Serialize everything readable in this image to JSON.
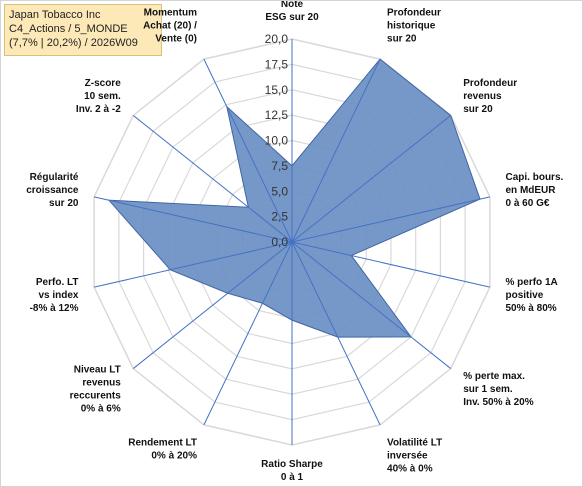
{
  "title_box": {
    "line1": "Japan Tobacco Inc",
    "line2": "C4_Actions / 5_MONDE",
    "line3": "(7,7% | 20,2%) / 2026W09"
  },
  "chart_data": {
    "type": "radar",
    "title": "Japan Tobacco Inc",
    "rlim": [
      0,
      20
    ],
    "ticks": [
      "0,0",
      "2,5",
      "5,0",
      "7,5",
      "10,0",
      "12,5",
      "15,0",
      "17,5",
      "20,0"
    ],
    "grid": true,
    "axes": [
      [
        "Note",
        "ESG sur 20"
      ],
      [
        "Profondeur",
        "historique",
        "sur 20"
      ],
      [
        "Profondeur",
        "revenus",
        "sur 20"
      ],
      [
        "Capi. bours.",
        "en MdEUR",
        "0 à 60 G€"
      ],
      [
        "% perfo 1A",
        "positive",
        "50% à 80%"
      ],
      [
        "% perte max.",
        "sur 1 sem.",
        "Inv. 50% à 20%"
      ],
      [
        "Volatilité LT",
        "inversée",
        "40% à 0%"
      ],
      [
        "Ratio Sharpe",
        "0 à 1"
      ],
      [
        "Rendement LT",
        "0% à 20%"
      ],
      [
        "Niveau LT",
        "revenus",
        "reccurents",
        "0% à 6%"
      ],
      [
        "Perfo. LT",
        "vs index",
        "-8% à 12%"
      ],
      [
        "Régularité",
        "croissance",
        "sur 20"
      ],
      [
        "Z-score",
        "10 sem.",
        "Inv. 2 à -2"
      ],
      [
        "Momentum",
        "Achat (20) /",
        "Vente (0)"
      ]
    ],
    "series": [
      {
        "values": [
          7.5,
          20,
          20,
          19,
          6,
          15,
          10.4,
          7.7,
          6.7,
          8.1,
          12.3,
          18.5,
          5.5,
          14.8
        ]
      }
    ],
    "colors": {
      "fill": "#6a8fc4",
      "stroke": "#3f66a3",
      "grid": "#d9d9d9",
      "axis": "#4472c4"
    }
  }
}
